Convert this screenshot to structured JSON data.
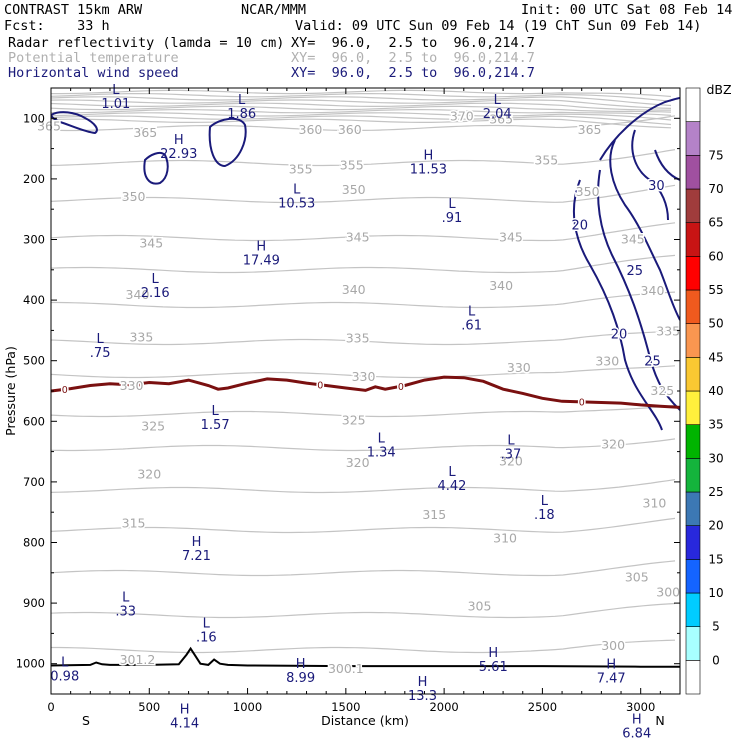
{
  "header": {
    "model": "CONTRAST 15km ARW",
    "org": "NCAR/MMM",
    "init": "Init: 00 UTC Sat 08 Feb 14",
    "fcst": "Fcst:    33 h",
    "valid": "Valid: 09 UTC Sun 09 Feb 14 (19 ChT Sun 09 Feb 14)",
    "fields": [
      {
        "name": "Radar reflectivity (lamda = 10 cm)",
        "xy": "XY=  96.0,  2.5 to  96.0,214.7",
        "color": "#000000"
      },
      {
        "name": "Potential temperature",
        "xy": "XY=  96.0,  2.5 to  96.0,214.7",
        "color": "#b0b0b0"
      },
      {
        "name": "Horizontal wind speed",
        "xy": "XY=  96.0,  2.5 to  96.0,214.7",
        "color": "#1a1a7a"
      }
    ]
  },
  "chart_data": {
    "type": "contour-cross-section",
    "xlabel": "Distance (km)",
    "ylabel": "Pressure (hPa)",
    "xlim": [
      0,
      3200
    ],
    "ylim": [
      1050,
      50
    ],
    "y_scale": "linear",
    "xticks": [
      0,
      500,
      1000,
      1500,
      2000,
      2500,
      3000
    ],
    "yticks": [
      100,
      200,
      300,
      400,
      500,
      600,
      700,
      800,
      900,
      1000
    ],
    "endpoint_labels": {
      "left": "S",
      "right": "N"
    },
    "theta_labels": [
      {
        "text": "365",
        "x": -10,
        "p": 112
      },
      {
        "text": "365",
        "x": 480,
        "p": 123
      },
      {
        "text": "360",
        "x": 1320,
        "p": 118
      },
      {
        "text": "360",
        "x": 1520,
        "p": 118
      },
      {
        "text": "370",
        "x": 2090,
        "p": 95
      },
      {
        "text": "365",
        "x": 2290,
        "p": 100
      },
      {
        "text": "365",
        "x": 2740,
        "p": 118
      },
      {
        "text": "355",
        "x": 1270,
        "p": 183
      },
      {
        "text": "355",
        "x": 1530,
        "p": 176
      },
      {
        "text": "355",
        "x": 2520,
        "p": 168
      },
      {
        "text": "350",
        "x": 420,
        "p": 228
      },
      {
        "text": "350",
        "x": 1540,
        "p": 217
      },
      {
        "text": "350",
        "x": 2730,
        "p": 220
      },
      {
        "text": "345",
        "x": 510,
        "p": 305
      },
      {
        "text": "345",
        "x": 1560,
        "p": 295
      },
      {
        "text": "345",
        "x": 2340,
        "p": 295
      },
      {
        "text": "345",
        "x": 2960,
        "p": 298
      },
      {
        "text": "340",
        "x": 440,
        "p": 390
      },
      {
        "text": "340",
        "x": 1540,
        "p": 382
      },
      {
        "text": "340",
        "x": 2290,
        "p": 375
      },
      {
        "text": "340",
        "x": 3060,
        "p": 383
      },
      {
        "text": "335",
        "x": 460,
        "p": 460
      },
      {
        "text": "335",
        "x": 1560,
        "p": 462
      },
      {
        "text": "335",
        "x": 3140,
        "p": 450
      },
      {
        "text": "330",
        "x": 410,
        "p": 540
      },
      {
        "text": "330",
        "x": 1590,
        "p": 525
      },
      {
        "text": "330",
        "x": 2380,
        "p": 510
      },
      {
        "text": "330",
        "x": 2830,
        "p": 500
      },
      {
        "text": "325",
        "x": 520,
        "p": 607
      },
      {
        "text": "325",
        "x": 1540,
        "p": 597
      },
      {
        "text": "325",
        "x": 3110,
        "p": 548
      },
      {
        "text": "320",
        "x": 500,
        "p": 686
      },
      {
        "text": "320",
        "x": 1560,
        "p": 667
      },
      {
        "text": "320",
        "x": 2340,
        "p": 665
      },
      {
        "text": "320",
        "x": 2860,
        "p": 637
      },
      {
        "text": "315",
        "x": 420,
        "p": 767
      },
      {
        "text": "315",
        "x": 1950,
        "p": 753
      },
      {
        "text": "310",
        "x": 2310,
        "p": 792
      },
      {
        "text": "310",
        "x": 3070,
        "p": 734
      },
      {
        "text": "305",
        "x": 2180,
        "p": 904
      },
      {
        "text": "305",
        "x": 2980,
        "p": 856
      },
      {
        "text": "300",
        "x": 3140,
        "p": 881
      },
      {
        "text": "300",
        "x": 2860,
        "p": 969
      },
      {
        "text": "301.2",
        "x": 440,
        "p": 992
      },
      {
        "text": "300.1",
        "x": 1500,
        "p": 1007
      }
    ],
    "wind_labels": [
      {
        "text": "20",
        "x": 2690,
        "p": 275
      },
      {
        "text": "30",
        "x": 3080,
        "p": 210
      },
      {
        "text": "25",
        "x": 2970,
        "p": 350
      },
      {
        "text": "20",
        "x": 2890,
        "p": 455
      },
      {
        "text": "25",
        "x": 3060,
        "p": 500
      }
    ],
    "extrema": [
      {
        "type": "L",
        "value": "1.01",
        "x": 330,
        "p": 60
      },
      {
        "type": "L",
        "value": "1.86",
        "x": 970,
        "p": 76
      },
      {
        "type": "L",
        "value": "2.04",
        "x": 2270,
        "p": 76
      },
      {
        "type": "H",
        "value": "22.93",
        "x": 650,
        "p": 142
      },
      {
        "type": "H",
        "value": "11.53",
        "x": 1920,
        "p": 168
      },
      {
        "type": "L",
        "value": "10.53",
        "x": 1250,
        "p": 224
      },
      {
        "type": "L",
        "value": ".91",
        "x": 2040,
        "p": 248
      },
      {
        "type": "H",
        "value": "17.49",
        "x": 1070,
        "p": 318
      },
      {
        "type": "L",
        "value": "2.16",
        "x": 530,
        "p": 372
      },
      {
        "type": "L",
        "value": ".61",
        "x": 2140,
        "p": 425
      },
      {
        "type": "L",
        "value": ".75",
        "x": 250,
        "p": 471
      },
      {
        "type": "L",
        "value": "1.57",
        "x": 835,
        "p": 590
      },
      {
        "type": "L",
        "value": "1.34",
        "x": 1680,
        "p": 635
      },
      {
        "type": "L",
        "value": ".37",
        "x": 2340,
        "p": 638
      },
      {
        "type": "L",
        "value": "4.42",
        "x": 2040,
        "p": 690
      },
      {
        "type": "L",
        "value": ".18",
        "x": 2510,
        "p": 738
      },
      {
        "type": "H",
        "value": "7.21",
        "x": 740,
        "p": 806
      },
      {
        "type": "L",
        "value": ".33",
        "x": 380,
        "p": 897
      },
      {
        "type": "L",
        "value": ".16",
        "x": 790,
        "p": 940
      },
      {
        "type": "L",
        "value": "0.98",
        "x": 70,
        "p": 1005
      },
      {
        "type": "H",
        "value": "8.99",
        "x": 1270,
        "p": 1007
      },
      {
        "type": "H",
        "value": "5.61",
        "x": 2250,
        "p": 989
      },
      {
        "type": "H",
        "value": "7.47",
        "x": 2850,
        "p": 1008
      },
      {
        "type": "H",
        "value": "13.3",
        "x": 1890,
        "p": 1037
      },
      {
        "type": "H",
        "value": "4.14",
        "x": 680,
        "p": 1082
      },
      {
        "type": "H",
        "value": "6.84",
        "x": 2980,
        "p": 1099
      }
    ],
    "reflectivity_zero_contour": {
      "label": "0",
      "x": [
        0,
        100,
        200,
        300,
        400,
        500,
        600,
        700,
        800,
        850,
        900,
        1000,
        1100,
        1200,
        1300,
        1400,
        1500,
        1600,
        1650,
        1700,
        1800,
        1900,
        2000,
        2100,
        2200,
        2300,
        2400,
        2500,
        2600,
        2700,
        2800,
        2900,
        3000,
        3100,
        3200
      ],
      "p": [
        550,
        546,
        541,
        538,
        540,
        536,
        538,
        532,
        541,
        547,
        545,
        537,
        530,
        532,
        537,
        541,
        545,
        549,
        543,
        547,
        541,
        532,
        527,
        528,
        534,
        547,
        554,
        562,
        567,
        568,
        569,
        570,
        573,
        575,
        577
      ]
    },
    "colorbar": {
      "unit": "dBZ",
      "levels": [
        0,
        5,
        10,
        15,
        20,
        25,
        30,
        35,
        40,
        45,
        50,
        55,
        60,
        65,
        70,
        75
      ],
      "colors": [
        "#ffffff",
        "#a8ffff",
        "#00ccff",
        "#1464ff",
        "#2828dc",
        "#3c78b4",
        "#14b43c",
        "#00b400",
        "#fff03c",
        "#fac832",
        "#fa9650",
        "#f05a1e",
        "#ff0000",
        "#c81414",
        "#a03c3c",
        "#a050a0",
        "#b482c8",
        "#ffffff"
      ]
    },
    "terrain": {
      "x": [
        0,
        200,
        230,
        260,
        300,
        500,
        650,
        690,
        710,
        730,
        760,
        800,
        830,
        860,
        900,
        1000,
        1500,
        2000,
        2500,
        3000,
        3200
      ],
      "p": [
        1003,
        1002,
        998,
        1001,
        1002,
        1002,
        1001,
        985,
        975,
        985,
        1000,
        1002,
        993,
        1000,
        1002,
        1003,
        1004,
        1004,
        1004,
        1005,
        1005
      ]
    }
  }
}
